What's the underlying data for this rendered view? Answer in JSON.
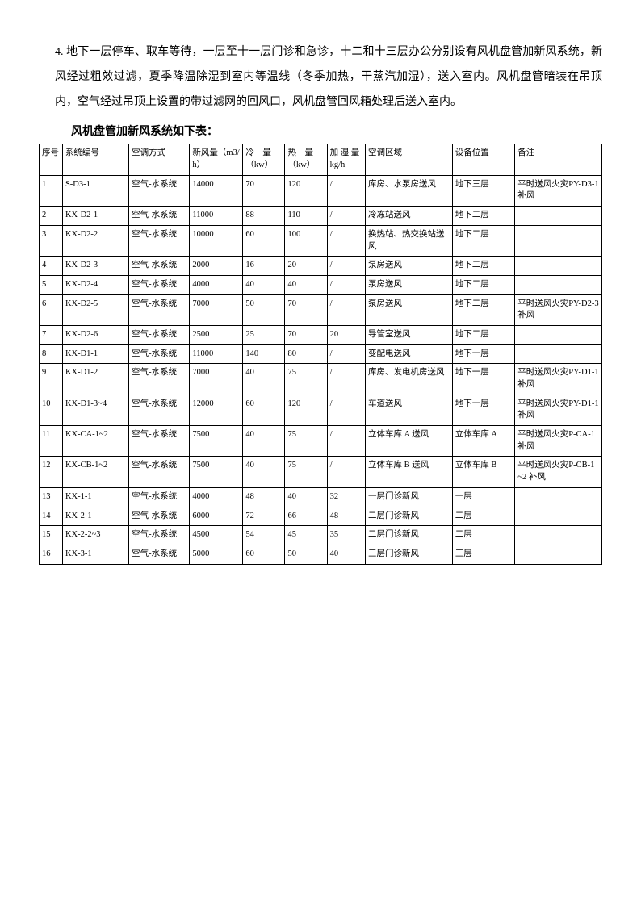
{
  "paragraph": {
    "number": "4.",
    "text": "地下一层停车、取车等待，一层至十一层门诊和急诊，十二和十三层办公分别设有风机盘管加新风系统，新风经过粗效过滤，夏季降温除湿到室内等温线（冬季加热，干蒸汽加湿），送入室内。风机盘管暗装在吊顶内，空气经过吊顶上设置的带过滤网的回风口，风机盘管回风箱处理后送入室内。"
  },
  "table_title": "风机盘管加新风系统如下表：",
  "headers": [
    "序号",
    "系统编号",
    "空调方式",
    "新风量（m3/h）",
    "冷　量（kw）",
    "热　量（kw）",
    "加 湿 量kg/h",
    "空调区域",
    "设备位置",
    "备注"
  ],
  "rows": [
    [
      "1",
      "S-D3-1",
      "空气-水系统",
      "14000",
      "70",
      "120",
      "/",
      "库房、水泵房送风",
      "地下三层",
      "平时送风火灾PY-D3-1 补风"
    ],
    [
      "2",
      "KX-D2-1",
      "空气-水系统",
      "11000",
      "88",
      "110",
      "/",
      "冷冻站送风",
      "地下二层",
      ""
    ],
    [
      "3",
      "KX-D2-2",
      "空气-水系统",
      "10000",
      "60",
      "100",
      "/",
      "换热站、热交换站送风",
      "地下二层",
      ""
    ],
    [
      "4",
      "KX-D2-3",
      "空气-水系统",
      "2000",
      "16",
      "20",
      "/",
      "泵房送风",
      "地下二层",
      ""
    ],
    [
      "5",
      "KX-D2-4",
      "空气-水系统",
      "4000",
      "40",
      "40",
      "/",
      "泵房送风",
      "地下二层",
      ""
    ],
    [
      "6",
      "KX-D2-5",
      "空气-水系统",
      "7000",
      "50",
      "70",
      "/",
      "泵房送风",
      "地下二层",
      "平时送风火灾PY-D2-3 补风"
    ],
    [
      "7",
      "KX-D2-6",
      "空气-水系统",
      "2500",
      "25",
      "70",
      "20",
      "导管室送风",
      "地下二层",
      ""
    ],
    [
      "8",
      "KX-D1-1",
      "空气-水系统",
      "11000",
      "140",
      "80",
      "/",
      "变配电送风",
      "地下一层",
      ""
    ],
    [
      "9",
      "KX-D1-2",
      "空气-水系统",
      "7000",
      "40",
      "75",
      "/",
      "库房、发电机房送风",
      "地下一层",
      "平时送风火灾PY-D1-1 补风"
    ],
    [
      "10",
      "KX-D1-3~4",
      "空气-水系统",
      "12000",
      "60",
      "120",
      "/",
      "车道送风",
      "地下一层",
      "平时送风火灾PY-D1-1 补风"
    ],
    [
      "11",
      "KX-CA-1~2",
      "空气-水系统",
      "7500",
      "40",
      "75",
      "/",
      "立体车库 A 送风",
      "立体车库 A",
      "平时送风火灾P-CA-1 补风"
    ],
    [
      "12",
      "KX-CB-1~2",
      "空气-水系统",
      "7500",
      "40",
      "75",
      "/",
      "立体车库 B 送风",
      "立体车库 B",
      "平时送风火灾P-CB-1~2 补风"
    ],
    [
      "13",
      "KX-1-1",
      "空气-水系统",
      "4000",
      "48",
      "40",
      "32",
      "一层门诊新风",
      "一层",
      ""
    ],
    [
      "14",
      "KX-2-1",
      "空气-水系统",
      "6000",
      "72",
      "66",
      "48",
      "二层门诊新风",
      "二层",
      ""
    ],
    [
      "15",
      "KX-2-2~3",
      "空气-水系统",
      "4500",
      "54",
      "45",
      "35",
      "二层门诊新风",
      "二层",
      ""
    ],
    [
      "16",
      "KX-3-1",
      "空气-水系统",
      "5000",
      "60",
      "50",
      "40",
      "三层门诊新风",
      "三层",
      ""
    ]
  ]
}
